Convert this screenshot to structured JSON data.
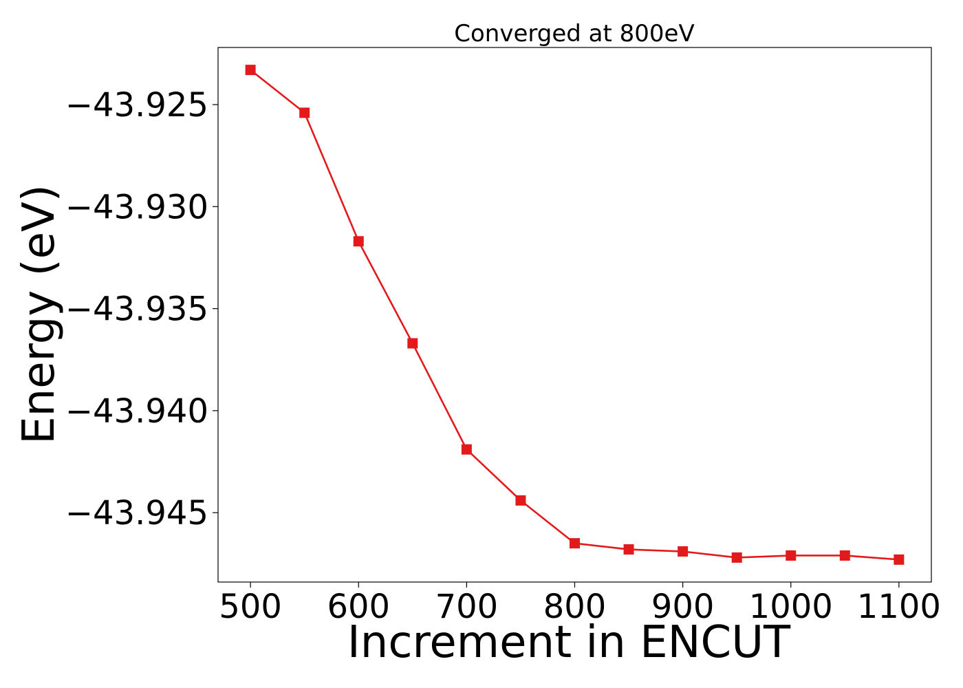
{
  "chart_data": {
    "type": "line",
    "title": "Converged at 800eV",
    "xlabel": "Increment in ENCUT",
    "ylabel": "Energy (eV)",
    "x": [
      500,
      550,
      600,
      650,
      700,
      750,
      800,
      850,
      900,
      950,
      1000,
      1050,
      1100
    ],
    "series": [
      {
        "values": [
          -43.9233,
          -43.9254,
          -43.9317,
          -43.9367,
          -43.9419,
          -43.9444,
          -43.9465,
          -43.9468,
          -43.9469,
          -43.9472,
          -43.9471,
          -43.9471,
          -43.9473
        ],
        "color": "#e31a1c",
        "marker": "square"
      }
    ],
    "xlim": [
      470,
      1130
    ],
    "ylim": [
      -43.9484,
      -43.9222
    ],
    "xticks": [
      500,
      600,
      700,
      800,
      900,
      1000,
      1100
    ],
    "xtick_labels": [
      "500",
      "600",
      "700",
      "800",
      "900",
      "1000",
      "1100"
    ],
    "yticks": [
      -43.925,
      -43.93,
      -43.935,
      -43.94,
      -43.945
    ],
    "ytick_labels": [
      "−43.925",
      "−43.930",
      "−43.935",
      "−43.940",
      "−43.945"
    ],
    "grid": false,
    "legend": false
  }
}
